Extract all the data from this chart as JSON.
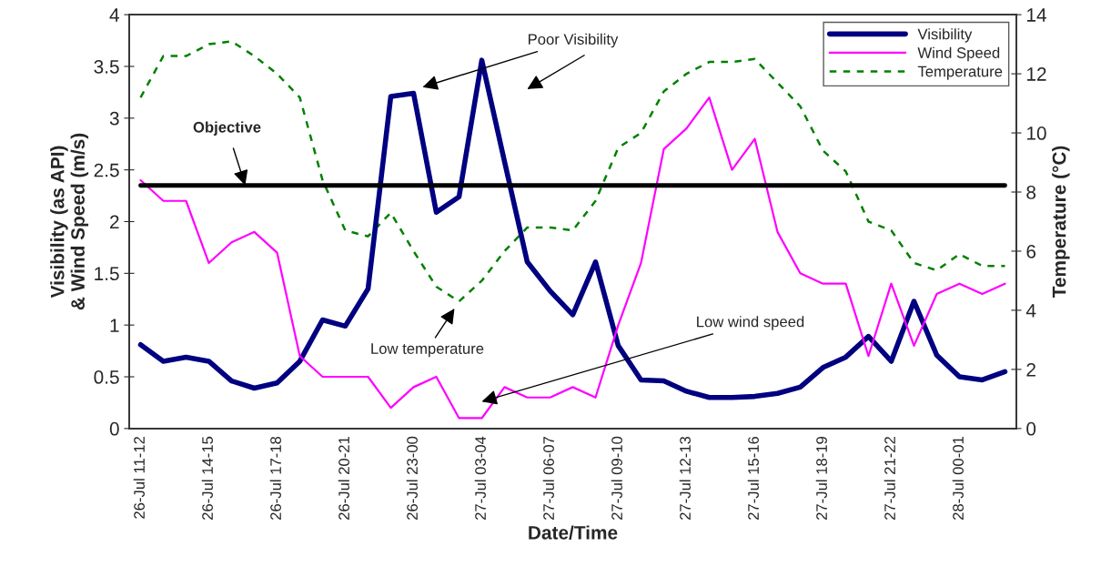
{
  "chart_data": {
    "type": "line",
    "categories": [
      "26-Jul 11-12",
      null,
      null,
      "26-Jul 14-15",
      null,
      null,
      "26-Jul 17-18",
      null,
      null,
      "26-Jul 20-21",
      null,
      null,
      "26-Jul 23-00",
      null,
      null,
      "27-Jul 03-04",
      null,
      null,
      "27-Jul 06-07",
      null,
      null,
      "27-Jul 09-10",
      null,
      null,
      "27-Jul 12-13",
      null,
      null,
      "27-Jul 15-16",
      null,
      null,
      "27-Jul 18-19",
      null,
      null,
      "27-Jul 21-22",
      null,
      null,
      "28-Jul 00-01",
      null,
      null
    ],
    "series": [
      {
        "name": "Visibility",
        "color": "#000080",
        "line_style": "solid",
        "values": [
          0.81,
          0.65,
          0.69,
          0.65,
          0.46,
          0.39,
          0.44,
          0.65,
          1.05,
          0.99,
          1.35,
          3.21,
          3.24,
          2.09,
          2.24,
          3.56,
          2.58,
          1.61,
          1.33,
          1.1,
          1.61,
          0.8,
          0.47,
          0.46,
          0.36,
          0.3,
          0.3,
          0.31,
          0.34,
          0.4,
          0.59,
          0.69,
          0.89,
          0.65,
          1.23,
          0.71,
          0.5,
          0.47,
          0.55
        ]
      },
      {
        "name": "Wind Speed",
        "color": "#ff00ff",
        "line_style": "solid",
        "values": [
          2.4,
          2.2,
          2.2,
          1.6,
          1.8,
          1.9,
          1.7,
          0.7,
          0.5,
          0.5,
          0.5,
          0.2,
          0.4,
          0.5,
          0.1,
          0.1,
          0.4,
          0.3,
          0.3,
          0.4,
          0.3,
          1.0,
          1.6,
          2.7,
          2.9,
          3.2,
          2.5,
          2.8,
          1.9,
          1.5,
          1.4,
          1.4,
          0.7,
          1.4,
          0.8,
          1.3,
          1.4,
          1.3,
          1.4
        ]
      },
      {
        "name": "Temperature",
        "color": "#008000",
        "line_style": "dashed",
        "axis": "y2",
        "values": [
          11.2,
          12.6,
          12.6,
          13.0,
          13.1,
          12.6,
          12.0,
          11.2,
          8.4,
          6.7,
          6.5,
          7.3,
          6.0,
          4.8,
          4.3,
          5.0,
          6.0,
          6.8,
          6.8,
          6.7,
          7.7,
          9.5,
          10.0,
          11.4,
          12.0,
          12.4,
          12.4,
          12.5,
          11.7,
          10.9,
          9.4,
          8.7,
          7.0,
          6.7,
          5.6,
          5.35,
          5.9,
          5.5,
          5.5
        ]
      }
    ],
    "xlabel": "Date/Time",
    "ylabel": "Visibility (as API)\n& Wind Speed (m/s)",
    "y2label": "Temperature (°C)",
    "ylim": [
      0,
      4
    ],
    "yticks": [
      0,
      0.5,
      1,
      1.5,
      2,
      2.5,
      3,
      3.5,
      4
    ],
    "y2lim": [
      0,
      14
    ],
    "y2ticks": [
      0,
      2,
      4,
      6,
      8,
      10,
      12,
      14
    ],
    "ref_lines": [
      {
        "axis": "y",
        "value": 2.35,
        "label": "Objective",
        "color": "#000000",
        "line_style": "solid"
      }
    ],
    "annotations": [
      "Poor Visibility",
      "Low temperature",
      "Low wind speed"
    ],
    "legend": "top right",
    "grid": false,
    "marker": "none"
  }
}
